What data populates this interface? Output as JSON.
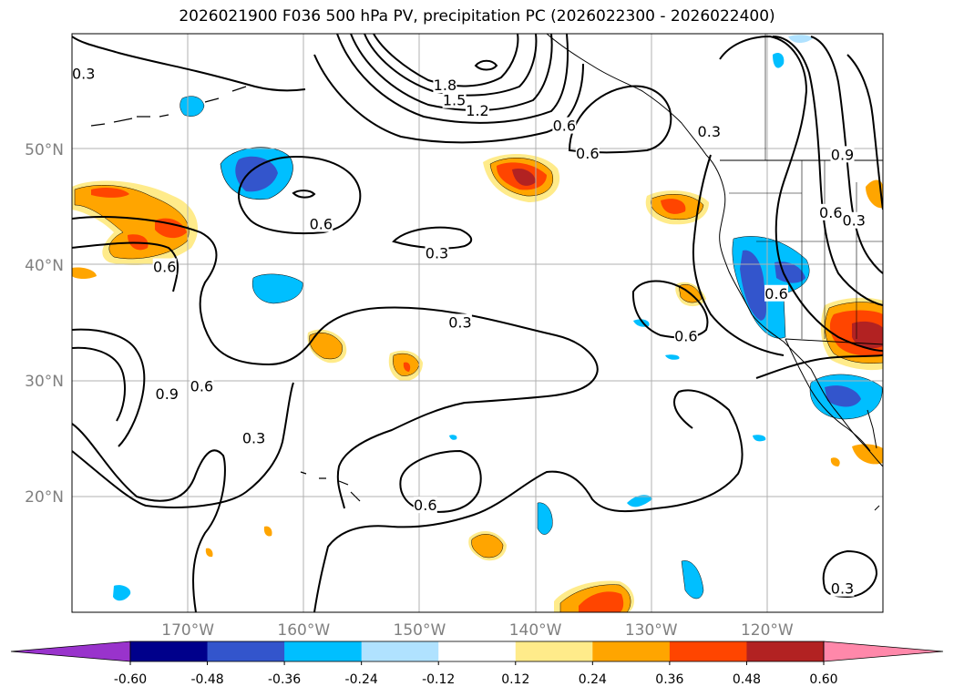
{
  "title": "2026021900 F036 500 hPa PV, precipitation PC (2026022300 - 2026022400)",
  "axes": {
    "lon_ticks": [
      {
        "lon": -170,
        "label": "170°W"
      },
      {
        "lon": -160,
        "label": "160°W"
      },
      {
        "lon": -150,
        "label": "150°W"
      },
      {
        "lon": -140,
        "label": "140°W"
      },
      {
        "lon": -130,
        "label": "130°W"
      },
      {
        "lon": -120,
        "label": "120°W"
      }
    ],
    "lat_ticks": [
      {
        "lat": 50,
        "label": "50°N"
      },
      {
        "lat": 40,
        "label": "40°N"
      },
      {
        "lat": 30,
        "label": "30°N"
      },
      {
        "lat": 20,
        "label": "20°N"
      }
    ],
    "lon_range": [
      -180,
      -110
    ],
    "lat_range": [
      10,
      60
    ]
  },
  "colorbar": {
    "levels": [
      "-0.60",
      "-0.48",
      "-0.36",
      "-0.24",
      "-0.12",
      "0.12",
      "0.24",
      "0.36",
      "0.48",
      "0.60"
    ],
    "colors": [
      "#9933cc",
      "#00008b",
      "#3355cc",
      "#00bfff",
      "#b0e2ff",
      "#ffffff",
      "#ffeb8a",
      "#ffa500",
      "#ff4500",
      "#b22222",
      "#ff88aa"
    ]
  },
  "contour_labels": [
    {
      "text": "0.3",
      "lon": -179.0,
      "lat": 56.5
    },
    {
      "text": "1.8",
      "lon": -147.8,
      "lat": 55.5
    },
    {
      "text": "1.5",
      "lon": -147.0,
      "lat": 54.2
    },
    {
      "text": "1.2",
      "lon": -145.0,
      "lat": 53.3
    },
    {
      "text": "0.6",
      "lon": -137.5,
      "lat": 52.0
    },
    {
      "text": "0.6",
      "lon": -135.5,
      "lat": 49.6
    },
    {
      "text": "0.3",
      "lon": -125.0,
      "lat": 51.5
    },
    {
      "text": "0.9",
      "lon": -113.5,
      "lat": 49.5
    },
    {
      "text": "0.6",
      "lon": -114.5,
      "lat": 44.5
    },
    {
      "text": "0.3",
      "lon": -112.5,
      "lat": 43.8
    },
    {
      "text": "0.6",
      "lon": -158.5,
      "lat": 43.5
    },
    {
      "text": "0.3",
      "lon": -148.5,
      "lat": 41.0
    },
    {
      "text": "0.6",
      "lon": -172.0,
      "lat": 39.8
    },
    {
      "text": "0.6",
      "lon": -119.2,
      "lat": 37.5
    },
    {
      "text": "0.3",
      "lon": -146.5,
      "lat": 35.0
    },
    {
      "text": "0.6",
      "lon": -127.0,
      "lat": 33.8
    },
    {
      "text": "0.6",
      "lon": -168.8,
      "lat": 29.5
    },
    {
      "text": "0.9",
      "lon": -171.8,
      "lat": 28.8
    },
    {
      "text": "0.3",
      "lon": -164.3,
      "lat": 25.0
    },
    {
      "text": "0.6",
      "lon": -149.5,
      "lat": 19.2
    },
    {
      "text": "0.3",
      "lon": -113.5,
      "lat": 12.0
    }
  ]
}
